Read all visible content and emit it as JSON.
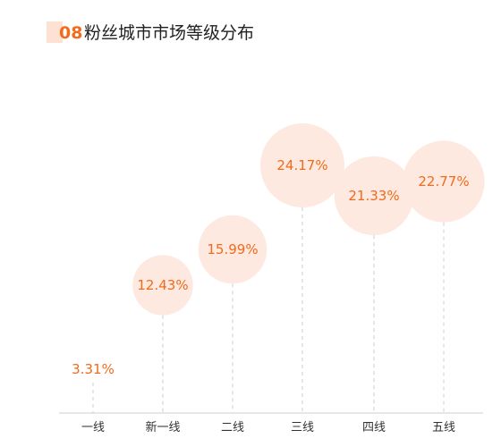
{
  "header": {
    "number": "08",
    "title": "粉丝城市市场等级分布"
  },
  "colors": {
    "accent": "#f26a1b",
    "bubble": "#fde9df",
    "dashed": "#cccccc",
    "axis": "#cfcfcf"
  },
  "chart_data": {
    "type": "scatter",
    "title": "粉丝城市市场等级分布",
    "categories": [
      "一线",
      "新一线",
      "二线",
      "三线",
      "四线",
      "五线"
    ],
    "values": [
      3.31,
      12.43,
      15.99,
      24.17,
      21.33,
      22.77
    ],
    "labels": [
      "3.31%",
      "12.43%",
      "15.99%",
      "24.17%",
      "21.33%",
      "22.77%"
    ],
    "unit": "%",
    "bubble_size_encodes": "value",
    "grid": false,
    "legend": "none"
  }
}
